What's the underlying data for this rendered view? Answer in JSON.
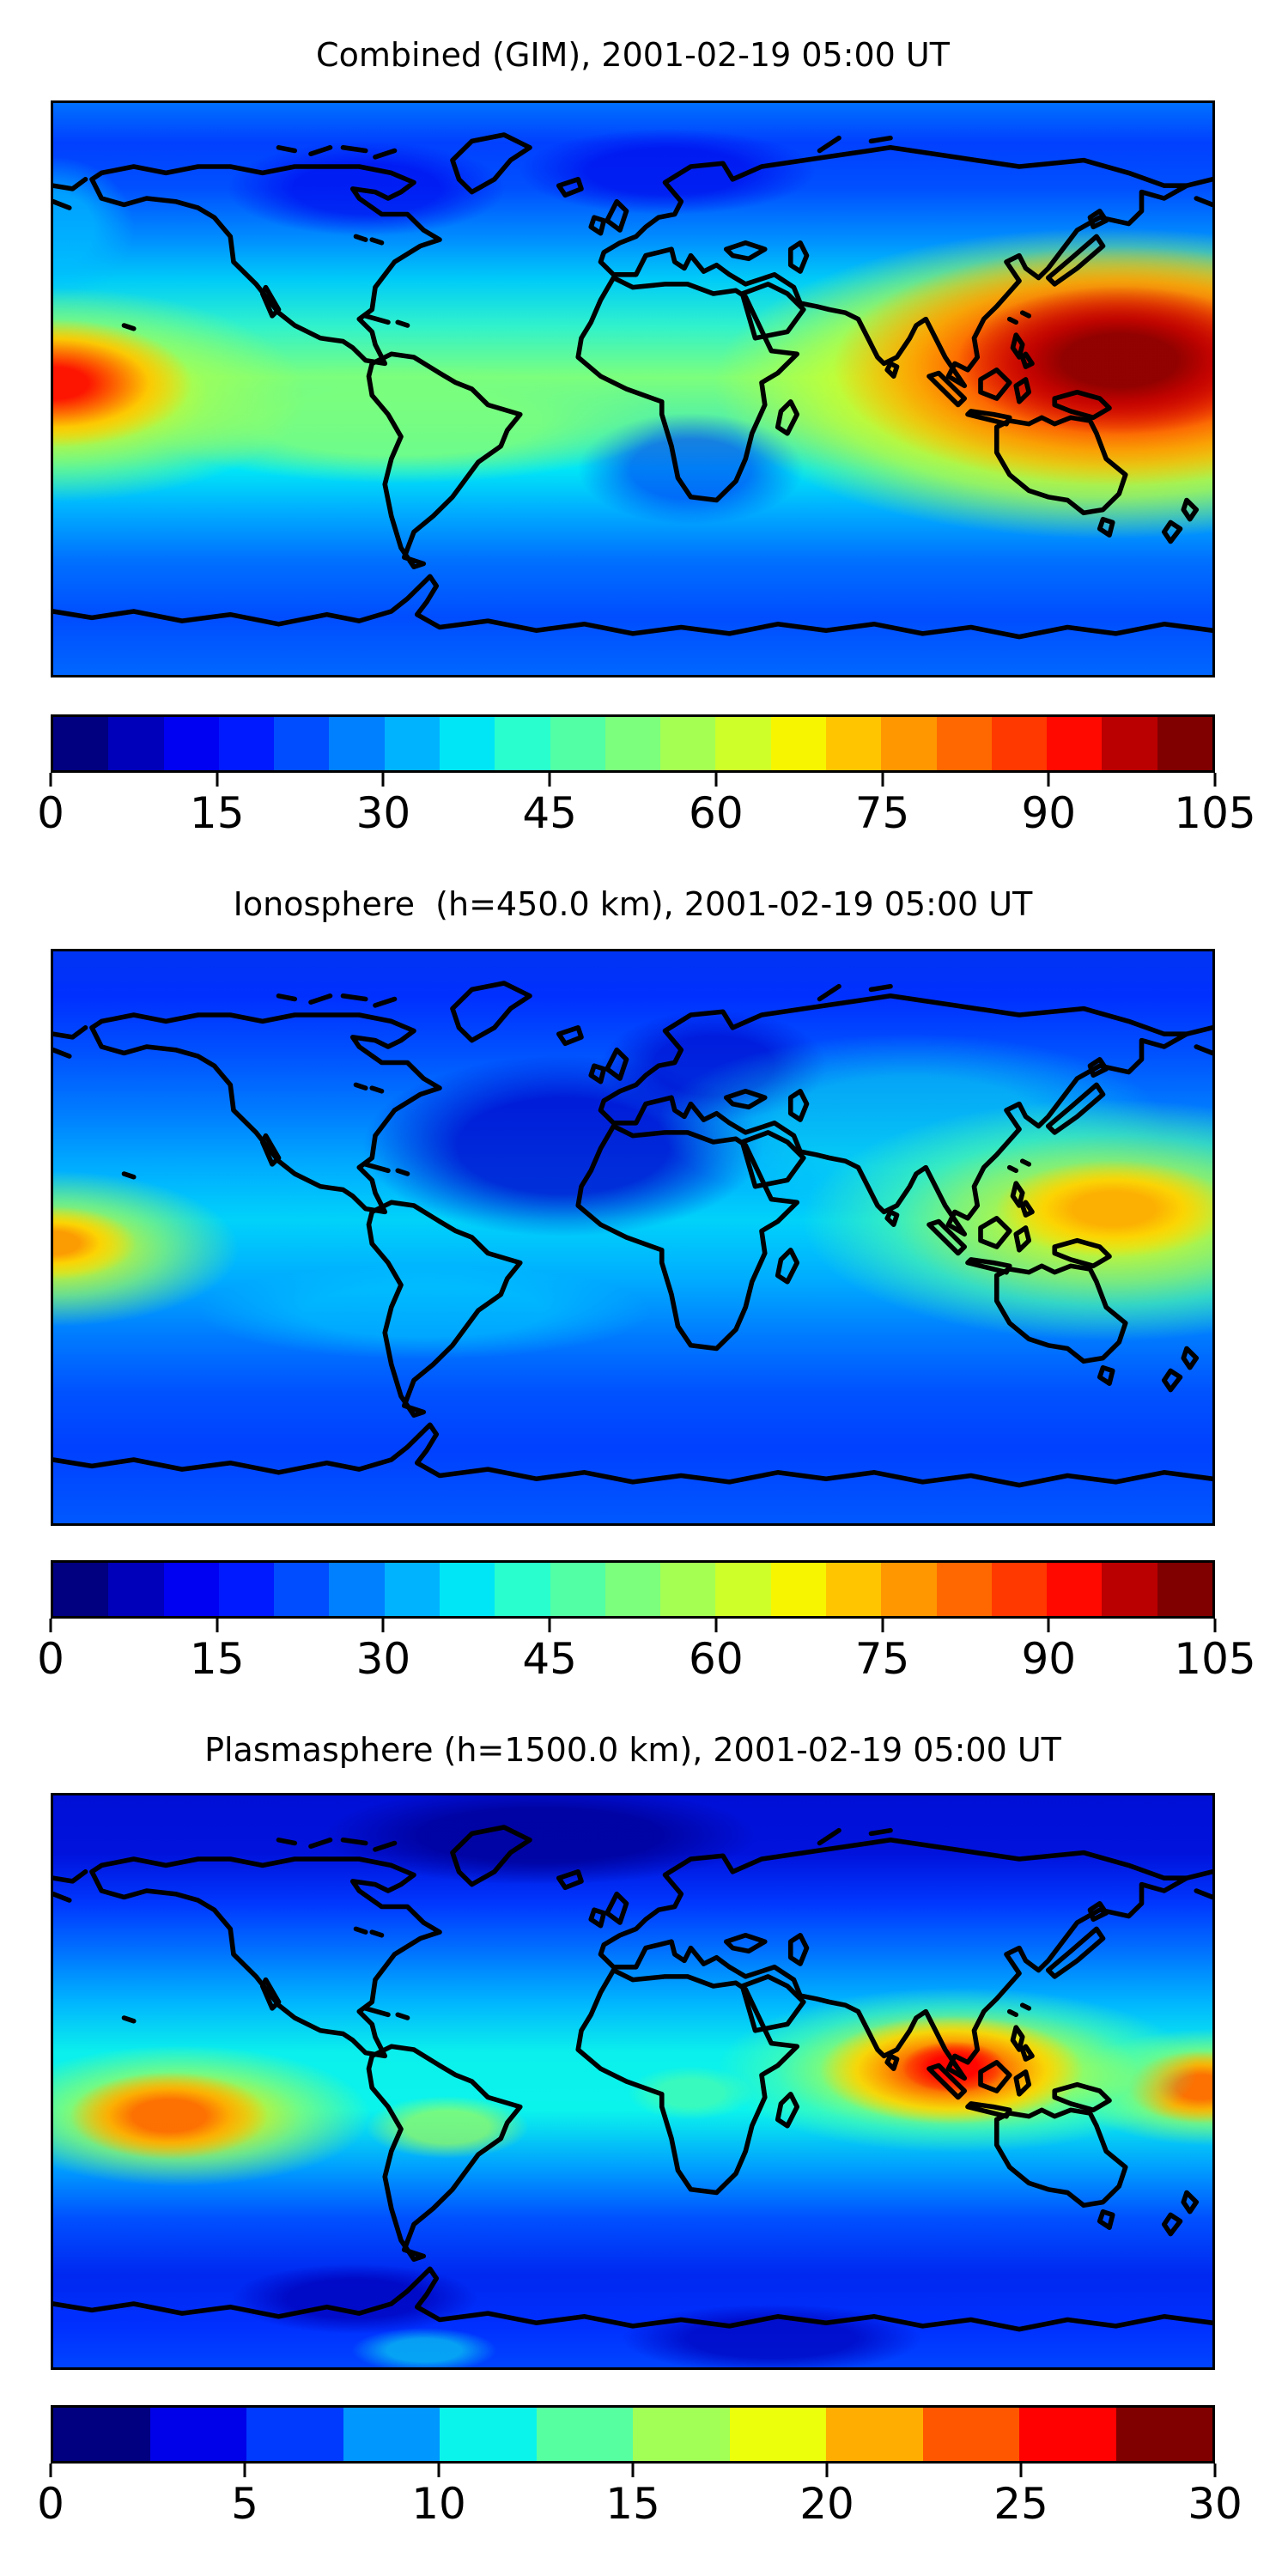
{
  "figure": {
    "kind": "matplotlib-style stacked contour maps with horizontal colorbars",
    "background": "#ffffff",
    "coastline_color": "#000000",
    "timestamp": "2001-02-19 05:00 UT"
  },
  "panels": [
    {
      "id": "combined",
      "title": "Combined (GIM), 2001-02-19 05:00 UT",
      "colorbar": {
        "min": 0,
        "max": 105,
        "n_levels": 21,
        "ticks": [
          "0",
          "15",
          "30",
          "45",
          "60",
          "75",
          "90",
          "105"
        ],
        "segment_colors": [
          "#000080",
          "#0000BA",
          "#0000F3",
          "#001AFF",
          "#004DFF",
          "#0080FF",
          "#00B3FF",
          "#00E6F7",
          "#29FFCE",
          "#52FFA5",
          "#7CFF7C",
          "#A5FF52",
          "#CEFF29",
          "#F7F600",
          "#FFC600",
          "#FF9700",
          "#FF6800",
          "#FF3900",
          "#FF0900",
          "#BA0000",
          "#800000"
        ]
      }
    },
    {
      "id": "ionosphere",
      "title": "Ionosphere  (h=450.0 km), 2001-02-19 05:00 UT",
      "colorbar": {
        "min": 0,
        "max": 105,
        "n_levels": 21,
        "ticks": [
          "0",
          "15",
          "30",
          "45",
          "60",
          "75",
          "90",
          "105"
        ],
        "segment_colors": [
          "#000080",
          "#0000BA",
          "#0000F3",
          "#001AFF",
          "#004DFF",
          "#0080FF",
          "#00B3FF",
          "#00E6F7",
          "#29FFCE",
          "#52FFA5",
          "#7CFF7C",
          "#A5FF52",
          "#CEFF29",
          "#F7F600",
          "#FFC600",
          "#FF9700",
          "#FF6800",
          "#FF3900",
          "#FF0900",
          "#BA0000",
          "#800000"
        ]
      }
    },
    {
      "id": "plasmasphere",
      "title": "Plasmasphere (h=1500.0 km), 2001-02-19 05:00 UT",
      "colorbar": {
        "min": 0,
        "max": 30,
        "n_levels": 12,
        "ticks": [
          "0",
          "5",
          "10",
          "15",
          "20",
          "25",
          "30"
        ],
        "segment_colors": [
          "#000080",
          "#0000E9",
          "#003AFF",
          "#0097FF",
          "#0BF4EC",
          "#56FFA0",
          "#A1FF56",
          "#ECFF0B",
          "#FFAD00",
          "#FF5700",
          "#FF0100",
          "#800000"
        ]
      }
    }
  ],
  "chart_data": [
    {
      "type": "heatmap",
      "title": "Combined (GIM), 2001-02-19 05:00 UT",
      "projection": "equirectangular world map, lon -180..180, lat -90..90",
      "colormap": "jet, discrete filled contours",
      "value_range": [
        0,
        105
      ],
      "level_step": 5,
      "colorbar_ticks": [
        0,
        15,
        30,
        45,
        60,
        75,
        90,
        105
      ],
      "legend_position": "horizontal colorbar below map",
      "overlay": "black coastlines",
      "features": [
        {
          "name": "west-pacific-equatorial-maximum",
          "lon": 149,
          "lat": 8,
          "peak_value": 100
        },
        {
          "name": "dateline-left-edge-maximum",
          "lon": -180,
          "lat": -1,
          "peak_value": 90
        },
        {
          "name": "india-secondary-high",
          "lon": 78,
          "lat": 8,
          "peak_value": 65
        },
        {
          "name": "equatorial-green-band-americas",
          "lon": -72,
          "lat": -10,
          "value": 45
        },
        {
          "name": "north-polar-low",
          "lon": -60,
          "lat": 60,
          "value": 10
        },
        {
          "name": "southern-ocean-band",
          "lon": 0,
          "lat": -60,
          "value": 20
        }
      ]
    },
    {
      "type": "heatmap",
      "title": "Ionosphere  (h=450.0 km), 2001-02-19 05:00 UT",
      "projection": "equirectangular world map, lon -180..180, lat -90..90",
      "colormap": "jet, discrete filled contours",
      "value_range": [
        0,
        105
      ],
      "level_step": 5,
      "colorbar_ticks": [
        0,
        15,
        30,
        45,
        60,
        75,
        90,
        105
      ],
      "legend_position": "horizontal colorbar below map",
      "overlay": "black coastlines",
      "features": [
        {
          "name": "west-pacific-equatorial-maximum",
          "lon": 149,
          "lat": 8,
          "peak_value": 80
        },
        {
          "name": "dateline-left-edge-maximum",
          "lon": -180,
          "lat": -4,
          "peak_value": 72
        },
        {
          "name": "atlantic-africa-night-minimum",
          "lon": -40,
          "lat": 25,
          "value": 3
        },
        {
          "name": "asia-cyan-region",
          "lon": 85,
          "lat": 30,
          "value": 35
        },
        {
          "name": "south-pacific-band",
          "lon": -65,
          "lat": -25,
          "value": 30
        }
      ]
    },
    {
      "type": "heatmap",
      "title": "Plasmasphere (h=1500.0 km), 2001-02-19 05:00 UT",
      "projection": "equirectangular world map, lon -180..180, lat -90..90",
      "colormap": "jet, discrete filled contours",
      "value_range": [
        0,
        30
      ],
      "level_step": 2.5,
      "colorbar_ticks": [
        0,
        5,
        10,
        15,
        20,
        25,
        30
      ],
      "legend_position": "horizontal colorbar below map",
      "overlay": "black coastlines",
      "features": [
        {
          "name": "bay-of-bengal-maximum",
          "lon": 100,
          "lat": 4,
          "peak_value": 28
        },
        {
          "name": "central-pacific-high",
          "lon": -144,
          "lat": -11,
          "peak_value": 24
        },
        {
          "name": "west-pacific-right-edge-high",
          "lon": 168,
          "lat": -2,
          "peak_value": 24
        },
        {
          "name": "equatorial-teal-band",
          "lon": -40,
          "lat": 0,
          "value": 11
        },
        {
          "name": "north-polar-minimum",
          "lon": -30,
          "lat": 75,
          "value": 2
        },
        {
          "name": "south-polar-minimum",
          "lon": 40,
          "lat": -80,
          "value": 4
        }
      ]
    }
  ]
}
